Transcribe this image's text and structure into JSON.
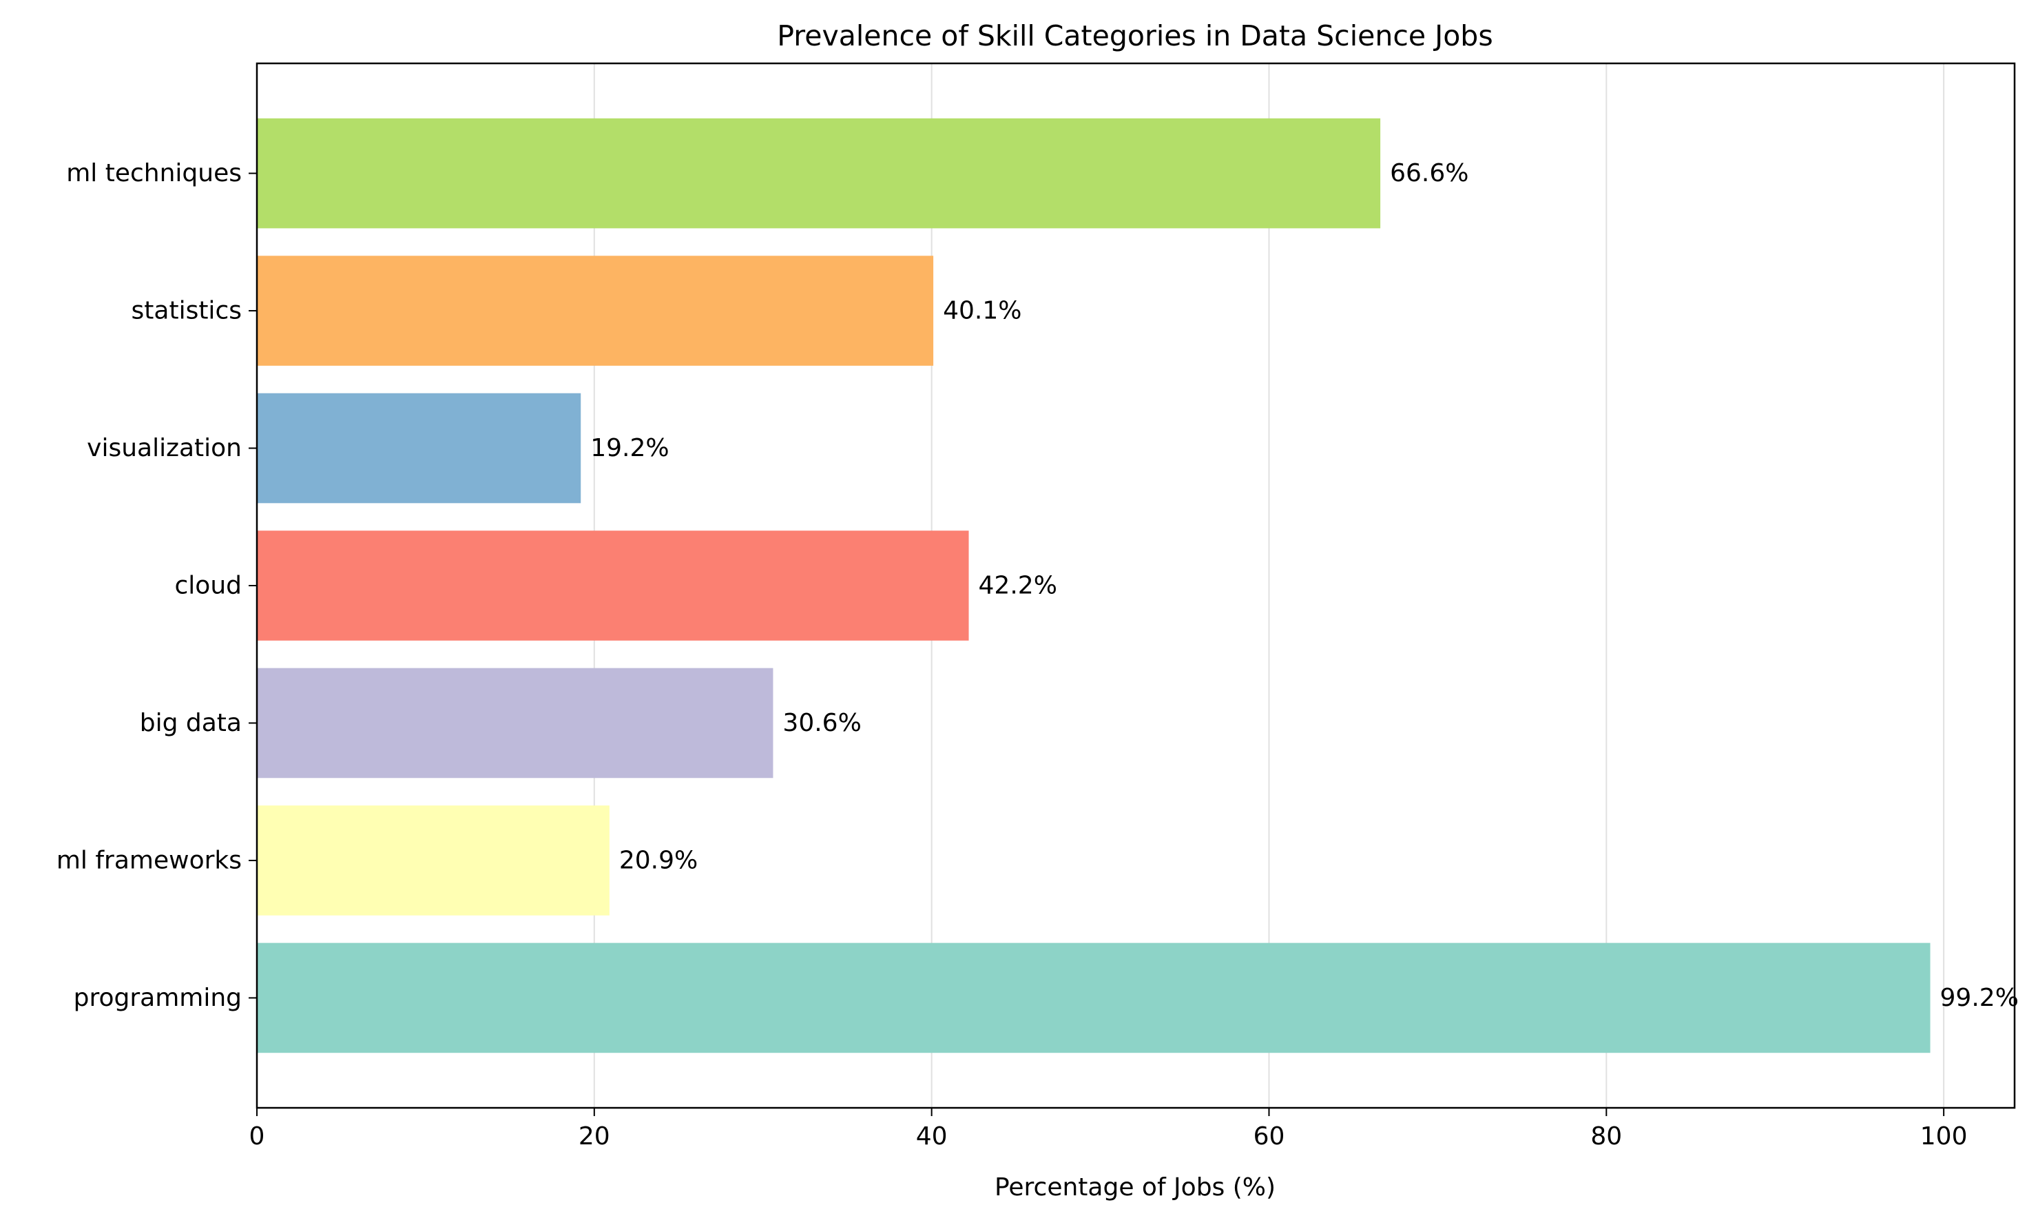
{
  "chart_data": {
    "type": "bar",
    "orientation": "horizontal",
    "title": "Prevalence of Skill Categories in Data Science Jobs",
    "xlabel": "Percentage of Jobs (%)",
    "ylabel": "",
    "xlim": [
      0,
      104.2
    ],
    "xticks": [
      0,
      20,
      40,
      60,
      80,
      100
    ],
    "grid": "x",
    "categories": [
      "programming",
      "ml frameworks",
      "big data",
      "cloud",
      "visualization",
      "statistics",
      "ml techniques"
    ],
    "values": [
      99.2,
      20.9,
      30.6,
      42.2,
      19.2,
      40.1,
      66.6
    ],
    "data_labels": [
      "99.2%",
      "20.9%",
      "30.6%",
      "42.2%",
      "19.2%",
      "40.1%",
      "66.6%"
    ],
    "colors": [
      "#8dd3c7",
      "#ffffb3",
      "#bebada",
      "#fb8072",
      "#80b1d3",
      "#fdb462",
      "#b3de69"
    ]
  }
}
